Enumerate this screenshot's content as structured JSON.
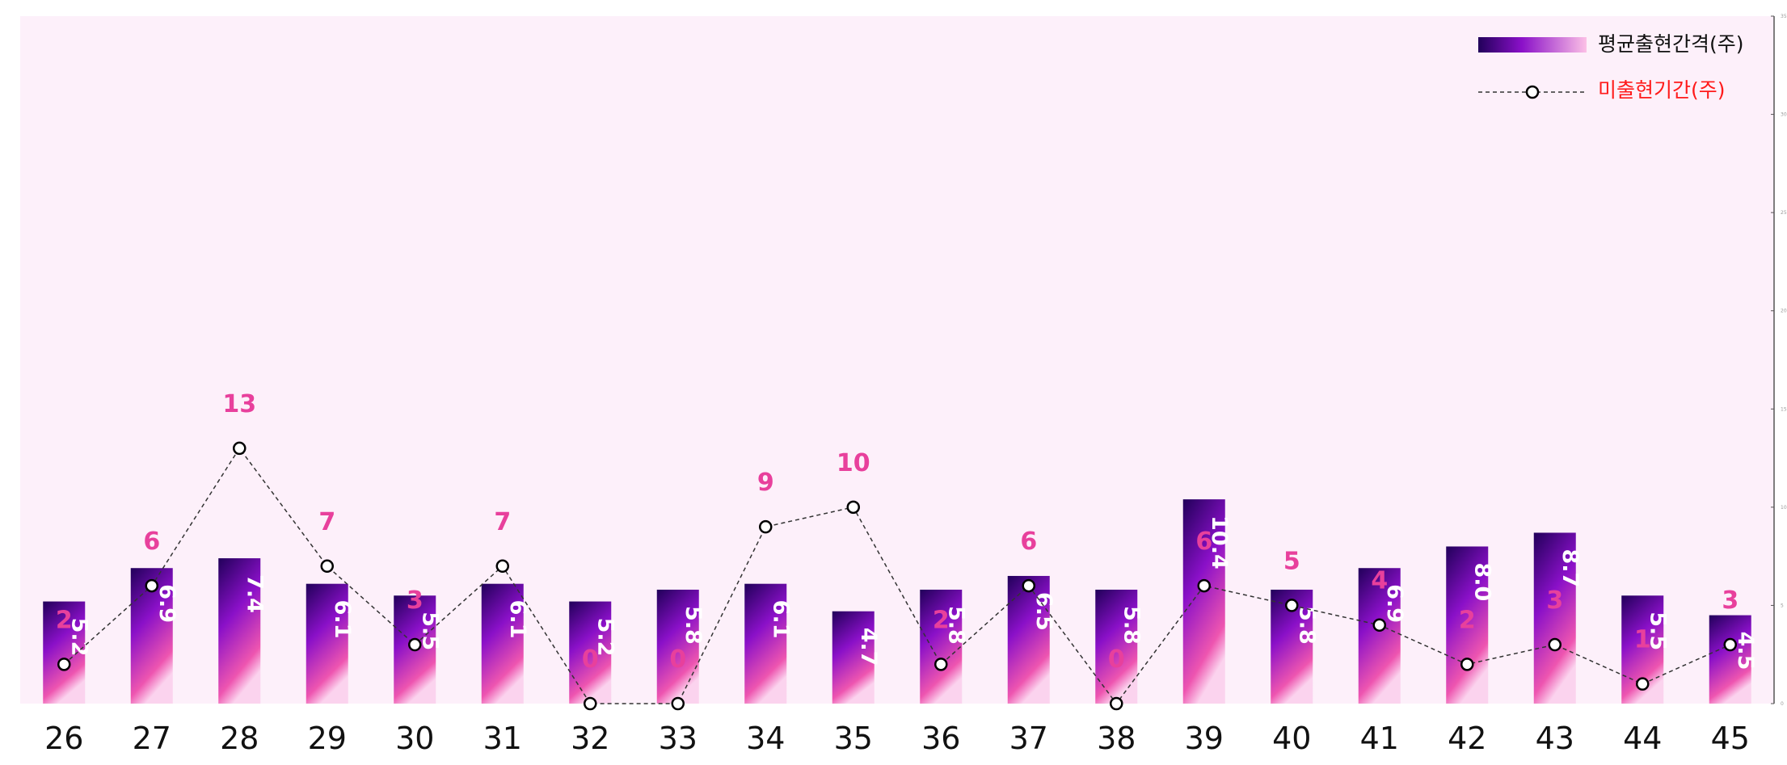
{
  "chart_data": {
    "type": "bar",
    "categories": [
      "26",
      "27",
      "28",
      "29",
      "30",
      "31",
      "32",
      "33",
      "34",
      "35",
      "36",
      "37",
      "38",
      "39",
      "40",
      "41",
      "42",
      "43",
      "44",
      "45"
    ],
    "series": [
      {
        "name": "평균출현간격(주)",
        "type": "bar",
        "values": [
          5.2,
          6.9,
          7.4,
          6.1,
          5.5,
          6.1,
          5.2,
          5.8,
          6.1,
          4.7,
          5.8,
          6.5,
          5.8,
          10.4,
          5.8,
          6.9,
          8.0,
          8.7,
          5.5,
          4.5
        ],
        "labels": [
          "5.2",
          "6.9",
          "7.4",
          "6.1",
          "5.5",
          "6.1",
          "5.2",
          "5.8",
          "6.1",
          "4.7",
          "5.8",
          "6.5",
          "5.8",
          "10.4",
          "5.8",
          "6.9",
          "8.0",
          "8.7",
          "5.5",
          "4.5"
        ]
      },
      {
        "name": "미출현기간(주)",
        "type": "line",
        "values": [
          2,
          6,
          13,
          7,
          3,
          7,
          0,
          0,
          9,
          10,
          2,
          6,
          0,
          6,
          5,
          4,
          2,
          3,
          1,
          3
        ]
      }
    ],
    "ylim": [
      0,
      35
    ],
    "y_ticks": [
      0,
      5,
      10,
      15,
      20,
      25,
      30,
      35
    ],
    "grid": false,
    "legend": "top-right",
    "colors": {
      "background": "#fdf0fa",
      "bar_top": "#21005a",
      "bar_mid": "#8a10c8",
      "bar_bottom": "#ee55b0",
      "bar_label": "#ffffff",
      "line": "#333333",
      "marker_fill": "#ffffff",
      "marker_stroke": "#000000",
      "line_label": "#e8409c",
      "legend_line_text": "#ff1a1a",
      "legend_bar_text": "#111111"
    }
  }
}
